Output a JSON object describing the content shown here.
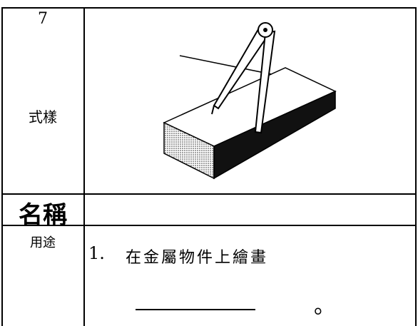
{
  "row1": {
    "number": "7",
    "label": "式樣"
  },
  "row2": {
    "label": "名稱"
  },
  "row3": {
    "label": "用途",
    "item": "1.",
    "text": "在金屬物件上繪畫",
    "end": "。"
  }
}
